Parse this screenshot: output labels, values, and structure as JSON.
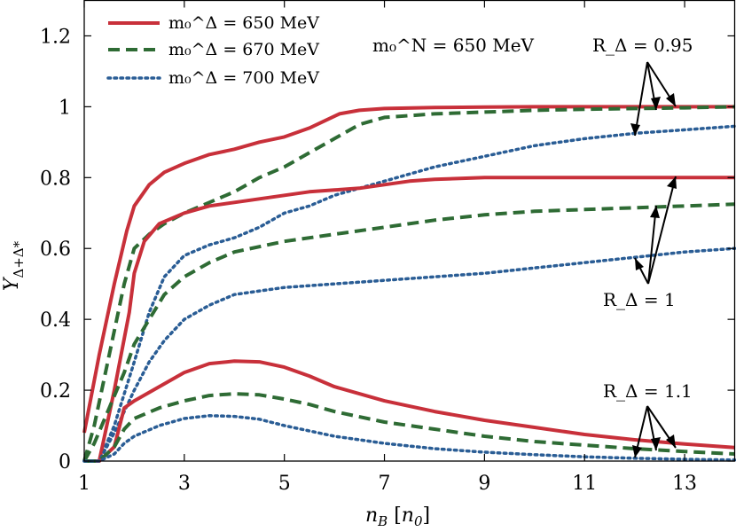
{
  "chart_data": {
    "type": "line",
    "xlabel": "n_B [n_0]",
    "ylabel": "Y_{Δ+Δ*}",
    "xlim": [
      1,
      14
    ],
    "ylim": [
      0,
      1.3
    ],
    "x_ticks": [
      "1",
      "3",
      "5",
      "7",
      "9",
      "11",
      "13"
    ],
    "x_tick_values": [
      1,
      3,
      5,
      7,
      9,
      11,
      13
    ],
    "y_ticks": [
      "0",
      "0.2",
      "0.4",
      "0.6",
      "0.8",
      "1",
      "1.2"
    ],
    "y_tick_values": [
      0,
      0.2,
      0.4,
      0.6,
      0.8,
      1.0,
      1.2
    ],
    "legend": [
      {
        "key": "m650",
        "label": "m₀^Δ = 650 MeV"
      },
      {
        "key": "m670",
        "label": "m₀^Δ = 670 MeV"
      },
      {
        "key": "m700",
        "label": "m₀^Δ = 700 MeV"
      }
    ],
    "annotations": {
      "mN": "m₀^N = 650 MeV",
      "r095": "R_Δ = 0.95",
      "r1": "R_Δ = 1",
      "r11": "R_Δ = 1.1"
    },
    "colors": {
      "m650": "#c8303a",
      "m670": "#2e6b34",
      "m700": "#2a5d95"
    },
    "series": [
      {
        "name": "R=0.95, m=650 MeV",
        "mass": "m650",
        "R": 0.95,
        "x": [
          1,
          1.3,
          1.6,
          1.85,
          2.0,
          2.3,
          2.6,
          3.0,
          3.5,
          4.0,
          4.5,
          5.0,
          5.5,
          5.8,
          6.1,
          6.5,
          7.0,
          8.0,
          9.0,
          10.0,
          11.0,
          12.0,
          13.0,
          14.0
        ],
        "y": [
          0.08,
          0.3,
          0.5,
          0.65,
          0.72,
          0.78,
          0.815,
          0.84,
          0.865,
          0.88,
          0.9,
          0.915,
          0.94,
          0.96,
          0.98,
          0.99,
          0.995,
          0.998,
          0.999,
          1.0,
          1.0,
          1.0,
          1.0,
          1.0
        ]
      },
      {
        "name": "R=0.95, m=670 MeV",
        "mass": "m670",
        "R": 0.95,
        "x": [
          1,
          1.2,
          1.5,
          1.8,
          2.0,
          2.3,
          2.6,
          3.0,
          3.5,
          4.0,
          4.5,
          5.0,
          5.5,
          6.0,
          6.5,
          7.0,
          8.0,
          9.0,
          10.0,
          11.0,
          12.0,
          13.0,
          14.0
        ],
        "y": [
          0.0,
          0.1,
          0.3,
          0.5,
          0.6,
          0.64,
          0.67,
          0.7,
          0.73,
          0.76,
          0.8,
          0.83,
          0.87,
          0.91,
          0.95,
          0.97,
          0.98,
          0.985,
          0.99,
          0.993,
          0.995,
          0.997,
          1.0
        ]
      },
      {
        "name": "R=0.95, m=700 MeV",
        "mass": "m700",
        "R": 0.95,
        "x": [
          1,
          1.3,
          1.6,
          2.0,
          2.3,
          2.6,
          3.0,
          3.5,
          4.0,
          4.5,
          5.0,
          5.5,
          6.0,
          7.0,
          8.0,
          9.0,
          10.0,
          11.0,
          12.0,
          13.0,
          14.0
        ],
        "y": [
          0.0,
          0.0,
          0.1,
          0.28,
          0.42,
          0.52,
          0.58,
          0.61,
          0.63,
          0.66,
          0.7,
          0.72,
          0.75,
          0.79,
          0.83,
          0.86,
          0.89,
          0.91,
          0.925,
          0.935,
          0.945
        ]
      },
      {
        "name": "R=1, m=650 MeV",
        "mass": "m650",
        "R": 1,
        "x": [
          1,
          1.3,
          1.6,
          1.9,
          2.0,
          2.2,
          2.5,
          3.0,
          3.5,
          4.0,
          4.5,
          5.0,
          5.5,
          6.0,
          6.5,
          7.0,
          7.5,
          8.0,
          9.0,
          10.0,
          11.0,
          12.0,
          13.0,
          14.0
        ],
        "y": [
          0.0,
          0.0,
          0.2,
          0.42,
          0.53,
          0.62,
          0.67,
          0.7,
          0.72,
          0.73,
          0.74,
          0.75,
          0.76,
          0.765,
          0.77,
          0.78,
          0.79,
          0.795,
          0.8,
          0.8,
          0.8,
          0.8,
          0.8,
          0.8
        ]
      },
      {
        "name": "R=1, m=670 MeV",
        "mass": "m670",
        "R": 1,
        "x": [
          1,
          1.2,
          1.5,
          1.8,
          2.0,
          2.3,
          2.6,
          3.0,
          3.5,
          4.0,
          5.0,
          6.0,
          7.0,
          8.0,
          9.0,
          10.0,
          11.0,
          12.0,
          13.0,
          14.0
        ],
        "y": [
          0.0,
          0.05,
          0.15,
          0.25,
          0.33,
          0.4,
          0.47,
          0.52,
          0.56,
          0.59,
          0.62,
          0.64,
          0.66,
          0.68,
          0.695,
          0.705,
          0.71,
          0.715,
          0.72,
          0.725
        ]
      },
      {
        "name": "R=1, m=700 MeV",
        "mass": "m700",
        "R": 1,
        "x": [
          1,
          1.3,
          1.6,
          2.0,
          2.3,
          2.6,
          3.0,
          3.5,
          4.0,
          5.0,
          6.0,
          7.0,
          8.0,
          9.0,
          10.0,
          11.0,
          12.0,
          13.0,
          14.0
        ],
        "y": [
          0.0,
          0.0,
          0.08,
          0.2,
          0.28,
          0.34,
          0.4,
          0.44,
          0.47,
          0.49,
          0.5,
          0.51,
          0.52,
          0.53,
          0.545,
          0.56,
          0.575,
          0.59,
          0.6
        ]
      },
      {
        "name": "R=1.1, m=650 MeV",
        "mass": "m650",
        "R": 1.1,
        "x": [
          1,
          1.3,
          1.6,
          1.8,
          2.0,
          2.5,
          3.0,
          3.5,
          4.0,
          4.5,
          5.0,
          5.5,
          6.0,
          7.0,
          8.0,
          9.0,
          10.0,
          11.0,
          12.0,
          13.0,
          14.0
        ],
        "y": [
          0.0,
          0.0,
          0.04,
          0.15,
          0.17,
          0.21,
          0.25,
          0.275,
          0.282,
          0.28,
          0.265,
          0.24,
          0.21,
          0.17,
          0.14,
          0.115,
          0.095,
          0.075,
          0.06,
          0.048,
          0.038
        ]
      },
      {
        "name": "R=1.1, m=670 MeV",
        "mass": "m670",
        "R": 1.1,
        "x": [
          1,
          1.3,
          1.6,
          1.8,
          2.0,
          2.5,
          3.0,
          3.5,
          4.0,
          4.5,
          5.0,
          5.5,
          6.0,
          7.0,
          8.0,
          9.0,
          10.0,
          11.0,
          12.0,
          13.0,
          14.0
        ],
        "y": [
          0.0,
          0.0,
          0.04,
          0.09,
          0.12,
          0.15,
          0.17,
          0.185,
          0.19,
          0.187,
          0.175,
          0.16,
          0.14,
          0.11,
          0.09,
          0.07,
          0.055,
          0.045,
          0.035,
          0.027,
          0.02
        ]
      },
      {
        "name": "R=1.1, m=700 MeV",
        "mass": "m700",
        "R": 1.1,
        "x": [
          1,
          1.3,
          1.6,
          1.8,
          2.0,
          2.5,
          3.0,
          3.5,
          4.0,
          4.5,
          5.0,
          5.5,
          6.0,
          7.0,
          8.0,
          9.0,
          10.0,
          11.0,
          12.0,
          13.0,
          14.0
        ],
        "y": [
          0.0,
          0.0,
          0.02,
          0.05,
          0.07,
          0.1,
          0.12,
          0.128,
          0.126,
          0.118,
          0.1,
          0.085,
          0.07,
          0.05,
          0.035,
          0.025,
          0.018,
          0.012,
          0.008,
          0.005,
          0.003
        ]
      }
    ]
  }
}
